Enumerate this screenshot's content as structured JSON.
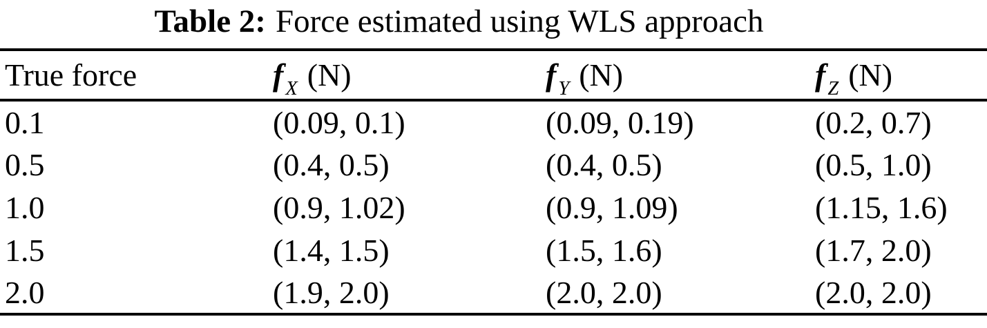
{
  "caption": {
    "label": "Table 2:",
    "text": "Force estimated using WLS approach"
  },
  "table": {
    "columns": [
      {
        "label": "True force"
      },
      {
        "symbol": "f",
        "subscript": "X",
        "unit": "(N)"
      },
      {
        "symbol": "f",
        "subscript": "Y",
        "unit": "(N)"
      },
      {
        "symbol": "f",
        "subscript": "Z",
        "unit": "(N)"
      }
    ],
    "rows": [
      [
        "0.1",
        "(0.09, 0.1)",
        "(0.09, 0.19)",
        "(0.2, 0.7)"
      ],
      [
        "0.5",
        "(0.4, 0.5)",
        "(0.4, 0.5)",
        "(0.5, 1.0)"
      ],
      [
        "1.0",
        "(0.9, 1.02)",
        "(0.9, 1.09)",
        "(1.15, 1.6)"
      ],
      [
        "1.5",
        "(1.4, 1.5)",
        "(1.5, 1.6)",
        "(1.7, 2.0)"
      ],
      [
        "2.0",
        "(1.9, 2.0)",
        "(2.0, 2.0)",
        "(2.0, 2.0)"
      ]
    ]
  },
  "colors": {
    "text": "#000000",
    "background": "#ffffff",
    "rule": "#000000"
  }
}
